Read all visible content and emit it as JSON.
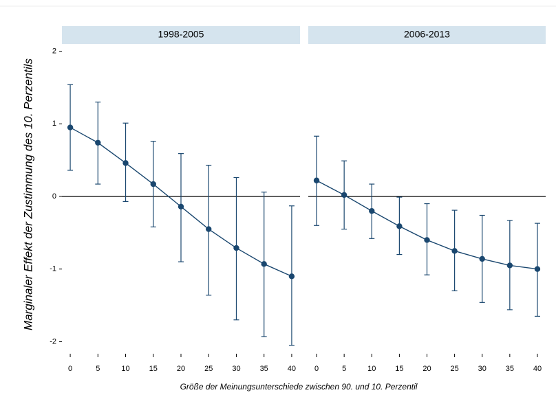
{
  "axis_labels": {
    "x": "Größe der Meinungsunterschiede zwischen 90. und 10. Perzentil",
    "y": "Marginaler Effekt der Zustimmung des 10. Perzentils"
  },
  "chart_data": [
    {
      "type": "line",
      "title": "1998-2005",
      "color": "#1a476f",
      "x": [
        0,
        5,
        10,
        15,
        20,
        25,
        30,
        35,
        40
      ],
      "values": [
        0.95,
        0.74,
        0.46,
        0.17,
        -0.14,
        -0.45,
        -0.71,
        -0.93,
        -1.1
      ],
      "upper": [
        1.54,
        1.3,
        1.01,
        0.76,
        0.59,
        0.43,
        0.26,
        0.06,
        -0.13
      ],
      "lower": [
        0.36,
        0.17,
        -0.07,
        -0.42,
        -0.9,
        -1.36,
        -1.7,
        -1.93,
        -2.05
      ],
      "xlim": [
        -1.5,
        41.5
      ],
      "xticks": [
        0,
        5,
        10,
        15,
        20,
        25,
        30,
        35,
        40
      ],
      "ylim": [
        -2.1,
        2.1
      ],
      "yticks": [
        2,
        1,
        0,
        -1,
        -2
      ],
      "hline": 0
    },
    {
      "type": "line",
      "title": "2006-2013",
      "color": "#1a476f",
      "x": [
        0,
        5,
        10,
        15,
        20,
        25,
        30,
        35,
        40
      ],
      "values": [
        0.22,
        0.02,
        -0.2,
        -0.41,
        -0.6,
        -0.75,
        -0.86,
        -0.95,
        -1.0
      ],
      "upper": [
        0.83,
        0.49,
        0.17,
        -0.01,
        -0.1,
        -0.19,
        -0.26,
        -0.33,
        -0.37
      ],
      "lower": [
        -0.4,
        -0.45,
        -0.58,
        -0.8,
        -1.08,
        -1.3,
        -1.46,
        -1.56,
        -1.65
      ],
      "xlim": [
        -1.5,
        41.5
      ],
      "xticks": [
        0,
        5,
        10,
        15,
        20,
        25,
        30,
        35,
        40
      ],
      "ylim": [
        -2.1,
        2.1
      ],
      "hline": 0
    }
  ]
}
